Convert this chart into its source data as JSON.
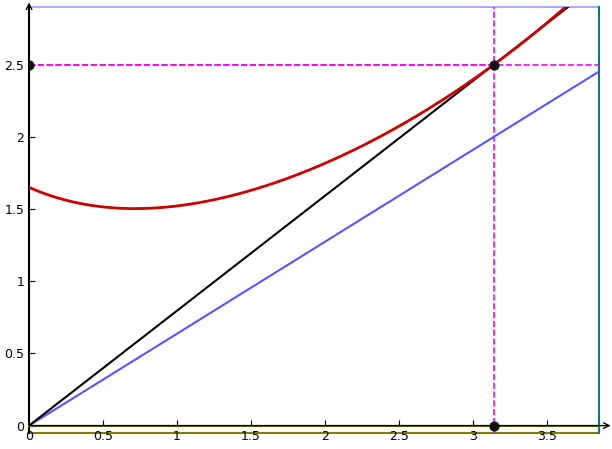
{
  "xlim": [
    0,
    3.85
  ],
  "ylim": [
    -0.05,
    2.9
  ],
  "xticks": [
    0,
    0.5,
    1,
    1.5,
    2,
    2.5,
    3,
    3.5
  ],
  "yticks": [
    0,
    0.5,
    1,
    1.5,
    2,
    2.5
  ],
  "pi": 3.14159265358979,
  "tangent_point_y": 2.5,
  "dashed_color": "#ff00ff",
  "red_curve_color": "#cc0000",
  "black_line_color": "#000000",
  "blue_line_color": "#5555ff",
  "dot_color": "#111111",
  "bg_color": "#ffffff",
  "bottom_axis_color": "#808000",
  "right_axis_color": "#008080",
  "left_axis_color": "#000000",
  "top_axis_color": "#9999ff",
  "A": 0.908,
  "B": 0.742,
  "blue_slope": 0.6366,
  "figsize": [
    6.12,
    4.49
  ],
  "dpi": 100
}
